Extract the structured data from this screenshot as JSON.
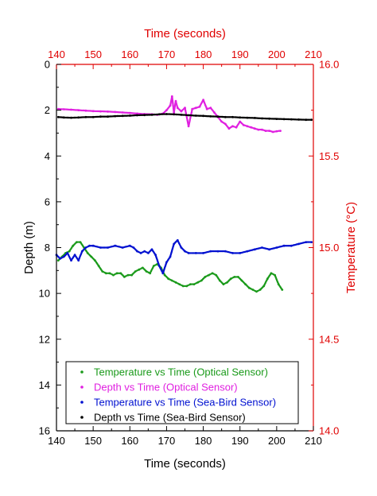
{
  "chart_data": {
    "type": "scatter",
    "title": "",
    "xlabel_bottom": "Time (seconds)",
    "xlabel_top": "Time (seconds)",
    "ylabel_left": "Depth (m)",
    "ylabel_right": "Temperature (°C)",
    "xlim": [
      140,
      210
    ],
    "ylim_left": [
      16,
      0
    ],
    "ylim_right": [
      14.0,
      16.0
    ],
    "x_ticks": [
      140,
      150,
      160,
      170,
      180,
      190,
      200,
      210
    ],
    "x_tick_labels": [
      "140",
      "150",
      "160",
      "170",
      "180",
      "190",
      "200",
      "210"
    ],
    "x_top_tick_labels": [
      "140",
      "150",
      "160",
      "170",
      "180",
      "190",
      "200",
      "210"
    ],
    "y_left_ticks": [
      0,
      2,
      4,
      6,
      8,
      10,
      12,
      14,
      16
    ],
    "y_left_tick_labels": [
      "0",
      "2",
      "4",
      "6",
      "8",
      "10",
      "12",
      "14",
      "16"
    ],
    "y_right_ticks": [
      16.0,
      15.5,
      15.0,
      14.5,
      14.0
    ],
    "y_right_tick_labels": [
      "16.0",
      "15.5",
      "15.0",
      "14.5",
      "14.0"
    ],
    "grid": false,
    "legend_position": "bottom-left",
    "colors": {
      "axis_left": "#000000",
      "axis_right": "#e00000",
      "axis_top": "#e00000",
      "optical_temp": "#1a9a1a",
      "optical_depth": "#e020e0",
      "seabird_temp": "#0010d0",
      "seabird_depth": "#000000"
    },
    "series": [
      {
        "name": "Temperature vs Time (Optical Sensor)",
        "axis": "right",
        "color": "#1a9a1a",
        "x": [
          140.5,
          141.5,
          142.5,
          143.5,
          144.5,
          145.5,
          146.5,
          147.5,
          148.5,
          149.5,
          150.5,
          151.5,
          152.5,
          153.5,
          154.5,
          155.5,
          156.5,
          157.5,
          158.5,
          159.5,
          160.5,
          161.5,
          162.5,
          163.5,
          164.5,
          165.5,
          166.5,
          167.5,
          168.5,
          169.5,
          170.5,
          171.5,
          172.5,
          173.5,
          174.5,
          175.5,
          176.5,
          177.5,
          178.5,
          179.5,
          180.5,
          181.5,
          182.5,
          183.5,
          184.5,
          185.5,
          186.5,
          187.5,
          188.5,
          189.5,
          190.5,
          191.5,
          192.5,
          193.5,
          194.5,
          195.5,
          196.5,
          197.5,
          198.5,
          199.5,
          200.5,
          201.5
        ],
        "y": [
          14.93,
          14.95,
          14.97,
          14.98,
          15.01,
          15.03,
          15.03,
          15.0,
          14.97,
          14.95,
          14.93,
          14.9,
          14.87,
          14.86,
          14.86,
          14.85,
          14.86,
          14.86,
          14.84,
          14.85,
          14.85,
          14.87,
          14.88,
          14.89,
          14.87,
          14.86,
          14.9,
          14.91,
          14.89,
          14.85,
          14.83,
          14.82,
          14.81,
          14.8,
          14.79,
          14.79,
          14.8,
          14.8,
          14.81,
          14.82,
          14.84,
          14.85,
          14.86,
          14.85,
          14.82,
          14.8,
          14.81,
          14.83,
          14.84,
          14.84,
          14.82,
          14.8,
          14.78,
          14.77,
          14.76,
          14.77,
          14.79,
          14.83,
          14.86,
          14.85,
          14.8,
          14.77
        ]
      },
      {
        "name": "Depth vs Time (Optical Sensor)",
        "axis": "left",
        "color": "#e020e0",
        "x": [
          140.5,
          142,
          144,
          146,
          148,
          150,
          152,
          154,
          156,
          158,
          160,
          162,
          164,
          166,
          167.5,
          169,
          170,
          171,
          171.5,
          172,
          172.5,
          173,
          174,
          175,
          176,
          177,
          178,
          179,
          180,
          181,
          182,
          183,
          184,
          185,
          186,
          187,
          188,
          189,
          190,
          191,
          192,
          193,
          194,
          195,
          196,
          197,
          198,
          199,
          200,
          201
        ],
        "y": [
          1.95,
          1.96,
          1.98,
          2.0,
          2.02,
          2.04,
          2.05,
          2.06,
          2.08,
          2.1,
          2.12,
          2.15,
          2.17,
          2.18,
          2.2,
          2.15,
          2.0,
          1.8,
          1.4,
          2.1,
          1.6,
          1.9,
          2.05,
          1.9,
          2.7,
          1.95,
          1.9,
          1.85,
          1.55,
          1.95,
          1.9,
          2.1,
          2.3,
          2.5,
          2.6,
          2.8,
          2.7,
          2.75,
          2.5,
          2.65,
          2.7,
          2.75,
          2.8,
          2.85,
          2.85,
          2.9,
          2.9,
          2.95,
          2.92,
          2.9
        ]
      },
      {
        "name": "Temperature vs Time (Sea-Bird Sensor)",
        "axis": "right",
        "color": "#0010d0",
        "x": [
          140,
          141,
          142,
          143,
          144,
          145,
          146,
          147,
          148,
          149,
          150,
          152,
          154,
          156,
          158,
          160,
          161,
          162,
          163,
          164,
          165,
          166,
          167,
          168,
          169,
          170,
          171,
          172,
          173,
          174,
          175,
          176,
          178,
          180,
          182,
          184,
          186,
          188,
          190,
          192,
          194,
          196,
          198,
          200,
          202,
          204,
          206,
          208,
          209.5
        ],
        "y": [
          14.96,
          14.94,
          14.95,
          14.97,
          14.93,
          14.96,
          14.93,
          14.98,
          15.0,
          15.01,
          15.01,
          15.0,
          15.0,
          15.01,
          15.0,
          15.01,
          15.0,
          14.98,
          14.97,
          14.98,
          14.97,
          14.99,
          14.96,
          14.9,
          14.86,
          14.92,
          14.95,
          15.02,
          15.04,
          15.0,
          14.98,
          14.97,
          14.97,
          14.97,
          14.98,
          14.98,
          14.98,
          14.97,
          14.97,
          14.98,
          14.99,
          15.0,
          14.99,
          15.0,
          15.01,
          15.01,
          15.02,
          15.03,
          15.03
        ]
      },
      {
        "name": "Depth vs Time (Sea-Bird Sensor)",
        "axis": "left",
        "color": "#000000",
        "x": [
          140.5,
          142,
          144,
          146,
          148,
          150,
          152,
          154,
          156,
          158,
          160,
          162,
          164,
          166,
          168,
          170,
          172,
          174,
          176,
          178,
          180,
          182,
          184,
          186,
          188,
          190,
          192,
          194,
          196,
          198,
          200,
          202,
          204,
          206,
          208,
          209.5
        ],
        "y": [
          2.3,
          2.32,
          2.33,
          2.32,
          2.3,
          2.3,
          2.28,
          2.28,
          2.26,
          2.25,
          2.24,
          2.22,
          2.21,
          2.2,
          2.18,
          2.17,
          2.18,
          2.2,
          2.22,
          2.24,
          2.25,
          2.27,
          2.28,
          2.3,
          2.3,
          2.32,
          2.33,
          2.34,
          2.36,
          2.37,
          2.38,
          2.39,
          2.4,
          2.41,
          2.42,
          2.42
        ]
      }
    ]
  }
}
